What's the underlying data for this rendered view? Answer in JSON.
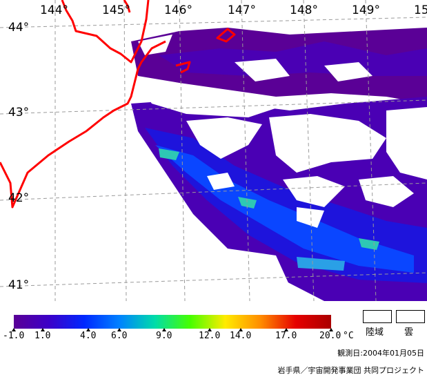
{
  "map": {
    "longitude_labels": [
      "144°",
      "145°",
      "146°",
      "147°",
      "148°",
      "149°",
      "15"
    ],
    "latitude_labels": [
      "44°",
      "43°",
      "42°",
      "41°"
    ]
  },
  "legend": {
    "ticks": [
      "-1.0",
      "1.0",
      "4.0",
      "6.0",
      "9.0",
      "12.0",
      "14.0",
      "17.0",
      "20.0"
    ],
    "unit": "°C",
    "land_label": "陸域",
    "cloud_label": "雲",
    "colors": [
      "#5a0096",
      "#3c00c8",
      "#0028ff",
      "#0082ff",
      "#00dcaa",
      "#46ff00",
      "#ffeb00",
      "#ff8c00",
      "#e60000",
      "#aa0000"
    ]
  },
  "observation": "観測日:2004年01月05日",
  "credit": "岩手県／宇宙開発事業団 共同プロジェクト",
  "coast_color": "#ff0000"
}
